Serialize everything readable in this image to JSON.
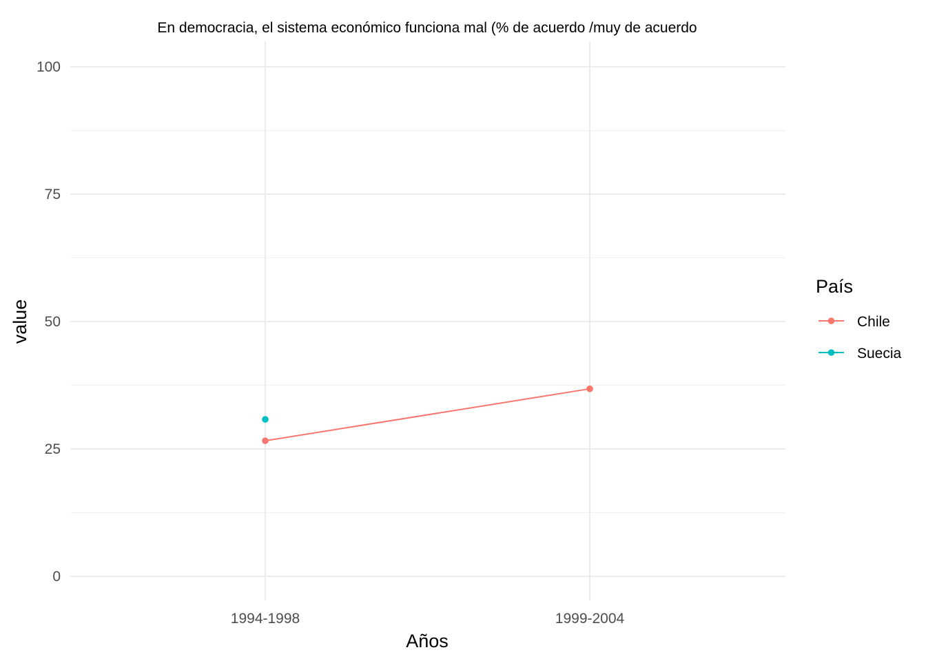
{
  "chart_data": {
    "type": "line",
    "title": "En democracia, el sistema económico funciona mal (% de acuerdo /muy de acuerdo",
    "xlabel": "Años",
    "ylabel": "value",
    "categories": [
      "1994-1998",
      "1999-2004"
    ],
    "ylim": [
      0,
      100
    ],
    "y_ticks": [
      0,
      25,
      50,
      75,
      100
    ],
    "grid": true,
    "legend": {
      "title": "País",
      "placement": "right"
    },
    "series": [
      {
        "name": "Chile",
        "color": "#F8766D",
        "values": [
          26.6,
          36.8
        ]
      },
      {
        "name": "Suecia",
        "color": "#00BFC4",
        "values": [
          30.8,
          null
        ]
      }
    ]
  }
}
